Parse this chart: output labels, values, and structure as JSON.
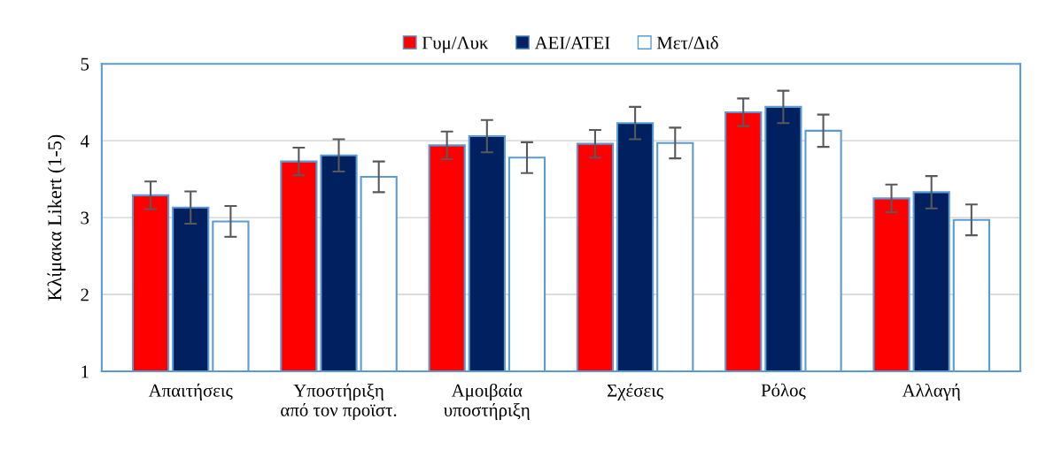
{
  "chart_data": {
    "type": "bar",
    "ylabel": "Κλίμακα Likert (1-5)",
    "categories": [
      "Απαιτήσεις",
      "Υποστήριξη\nαπό τον προϊστ.",
      "Αμοιβαία\nυποστήριξη",
      "Σχέσεις",
      "Ρόλος",
      "Αλλαγή"
    ],
    "series": [
      {
        "name": "Γυμ/Λυκ",
        "color": "#ff0000",
        "values": [
          3.29,
          3.73,
          3.94,
          3.96,
          4.37,
          3.25
        ],
        "errors": [
          0.18,
          0.18,
          0.18,
          0.18,
          0.18,
          0.18
        ]
      },
      {
        "name": "ΑΕΙ/ΑΤΕΙ",
        "color": "#002060",
        "values": [
          3.13,
          3.81,
          4.06,
          4.23,
          4.44,
          3.33
        ],
        "errors": [
          0.21,
          0.21,
          0.21,
          0.21,
          0.21,
          0.21
        ]
      },
      {
        "name": "Μετ/Διδ",
        "color": "#ffffff",
        "values": [
          2.95,
          3.53,
          3.78,
          3.97,
          4.13,
          2.97
        ],
        "errors": [
          0.2,
          0.2,
          0.2,
          0.2,
          0.21,
          0.2
        ]
      }
    ],
    "ylim": [
      1,
      5
    ],
    "yticks": [
      1,
      2,
      3,
      4,
      5
    ],
    "grid": "y",
    "legend": "top"
  }
}
